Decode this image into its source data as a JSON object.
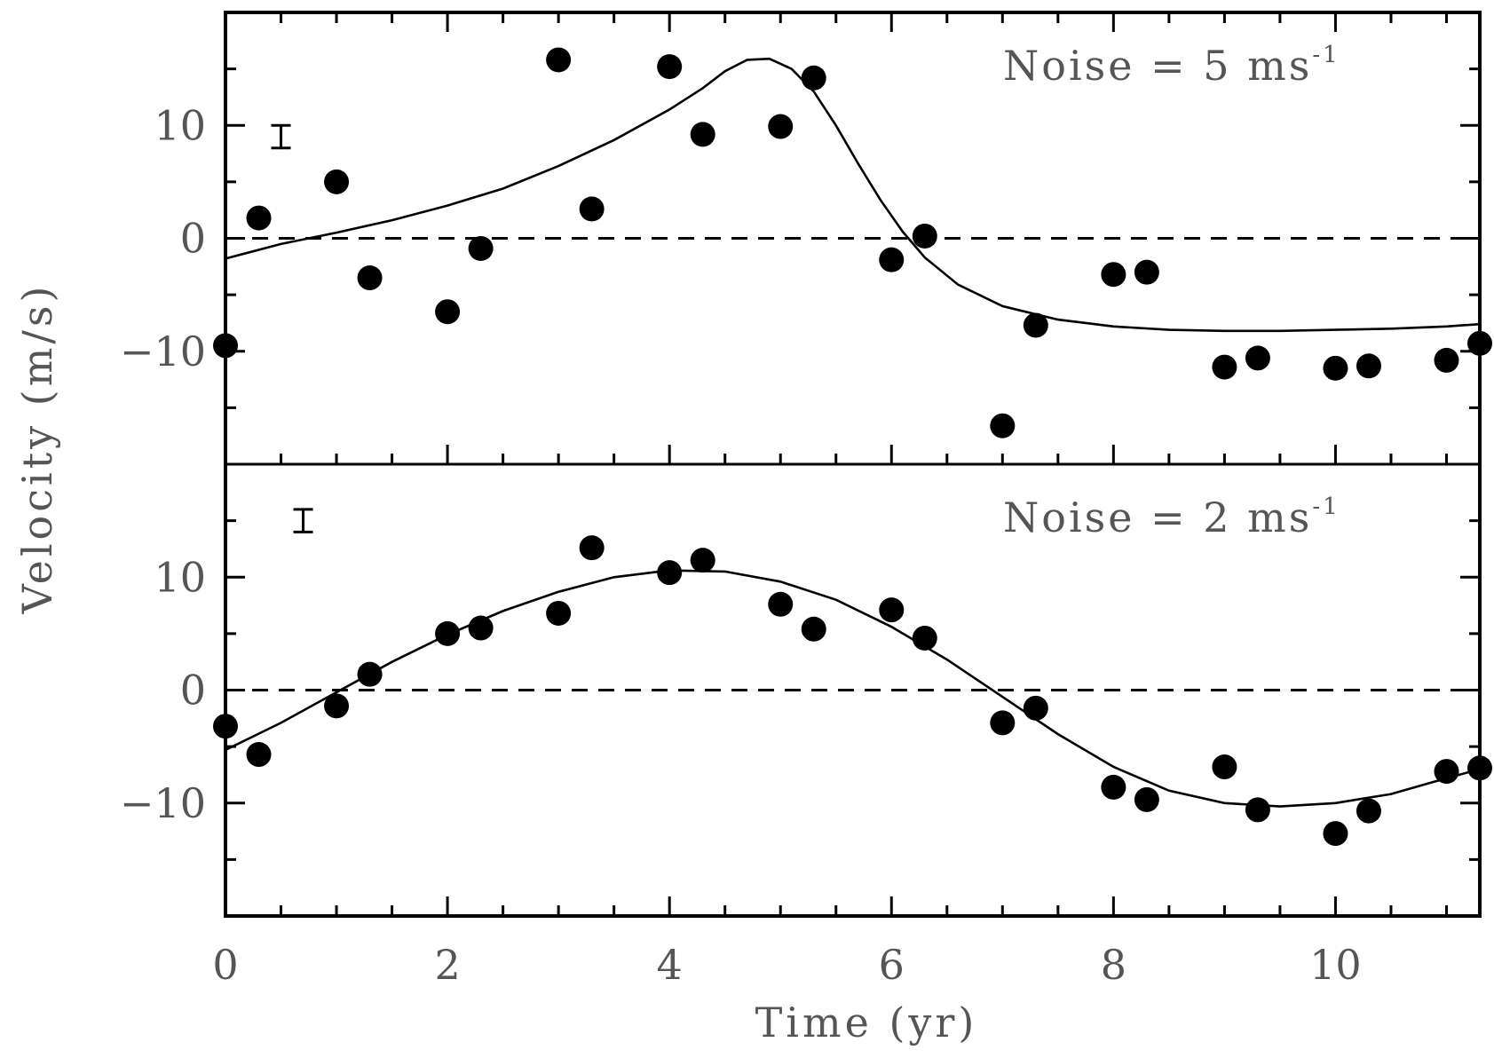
{
  "chart_data": {
    "type": "scatter",
    "xlabel": "Time (yr)",
    "ylabel": "Velocity (m/s)",
    "xlim": [
      0,
      11.3
    ],
    "x_ticks": [
      "0",
      "2",
      "4",
      "6",
      "8",
      "10"
    ],
    "x_tick_values": [
      0,
      2,
      4,
      6,
      8,
      10
    ],
    "grid": false,
    "legend": "none",
    "colors": {
      "axes": "#000000",
      "text": "#555555",
      "points": "#000000"
    },
    "panels": [
      {
        "label_text": "Noise = 5 ms",
        "label_exponent": "-1",
        "ylim": [
          -20,
          20
        ],
        "y_ticks": [
          "10",
          "0",
          "−10"
        ],
        "y_tick_values": [
          10,
          0,
          -10
        ],
        "zero_line": "dashed",
        "error_bar": {
          "x": 0.5,
          "y": 9,
          "half_height": 1
        },
        "points": [
          {
            "x": 0.0,
            "y": -9.5
          },
          {
            "x": 0.3,
            "y": 1.8
          },
          {
            "x": 1.0,
            "y": 5.0
          },
          {
            "x": 1.3,
            "y": -3.5
          },
          {
            "x": 2.0,
            "y": -6.5
          },
          {
            "x": 2.3,
            "y": -0.9
          },
          {
            "x": 3.0,
            "y": 15.8
          },
          {
            "x": 3.3,
            "y": 2.6
          },
          {
            "x": 4.0,
            "y": 15.2
          },
          {
            "x": 4.3,
            "y": 9.2
          },
          {
            "x": 5.0,
            "y": 9.9
          },
          {
            "x": 5.3,
            "y": 14.2
          },
          {
            "x": 6.0,
            "y": -1.9
          },
          {
            "x": 6.3,
            "y": 0.2
          },
          {
            "x": 7.0,
            "y": -16.6
          },
          {
            "x": 7.3,
            "y": -7.7
          },
          {
            "x": 8.0,
            "y": -3.2
          },
          {
            "x": 8.3,
            "y": -3.0
          },
          {
            "x": 9.0,
            "y": -11.4
          },
          {
            "x": 9.3,
            "y": -10.6
          },
          {
            "x": 10.0,
            "y": -11.5
          },
          {
            "x": 10.3,
            "y": -11.3
          },
          {
            "x": 11.0,
            "y": -10.8
          },
          {
            "x": 11.3,
            "y": -9.3
          }
        ],
        "fit_curve": [
          [
            0.0,
            -1.8
          ],
          [
            0.5,
            -0.5
          ],
          [
            1.0,
            0.5
          ],
          [
            1.5,
            1.6
          ],
          [
            2.0,
            2.9
          ],
          [
            2.5,
            4.4
          ],
          [
            3.0,
            6.4
          ],
          [
            3.5,
            8.7
          ],
          [
            4.0,
            11.4
          ],
          [
            4.3,
            13.3
          ],
          [
            4.5,
            14.8
          ],
          [
            4.7,
            15.8
          ],
          [
            4.9,
            15.9
          ],
          [
            5.1,
            15.0
          ],
          [
            5.3,
            13.0
          ],
          [
            5.5,
            10.0
          ],
          [
            5.7,
            6.6
          ],
          [
            5.9,
            3.4
          ],
          [
            6.1,
            0.6
          ],
          [
            6.3,
            -1.7
          ],
          [
            6.6,
            -4.1
          ],
          [
            7.0,
            -6.0
          ],
          [
            7.5,
            -7.2
          ],
          [
            8.0,
            -7.8
          ],
          [
            8.5,
            -8.1
          ],
          [
            9.0,
            -8.2
          ],
          [
            9.5,
            -8.2
          ],
          [
            10.0,
            -8.1
          ],
          [
            10.5,
            -8.0
          ],
          [
            11.0,
            -7.8
          ],
          [
            11.3,
            -7.6
          ]
        ]
      },
      {
        "label_text": "Noise = 2 ms",
        "label_exponent": "-1",
        "ylim": [
          -20,
          20
        ],
        "y_ticks": [
          "10",
          "0",
          "−10"
        ],
        "y_tick_values": [
          10,
          0,
          -10
        ],
        "zero_line": "dashed",
        "error_bar": {
          "x": 0.7,
          "y": 15,
          "half_height": 1
        },
        "points": [
          {
            "x": 0.0,
            "y": -3.2
          },
          {
            "x": 0.3,
            "y": -5.7
          },
          {
            "x": 1.0,
            "y": -1.4
          },
          {
            "x": 1.3,
            "y": 1.4
          },
          {
            "x": 2.0,
            "y": 5.0
          },
          {
            "x": 2.3,
            "y": 5.5
          },
          {
            "x": 3.0,
            "y": 6.8
          },
          {
            "x": 3.3,
            "y": 12.6
          },
          {
            "x": 4.0,
            "y": 10.4
          },
          {
            "x": 4.3,
            "y": 11.5
          },
          {
            "x": 5.0,
            "y": 7.6
          },
          {
            "x": 5.3,
            "y": 5.4
          },
          {
            "x": 6.0,
            "y": 7.1
          },
          {
            "x": 6.3,
            "y": 4.6
          },
          {
            "x": 7.0,
            "y": -2.9
          },
          {
            "x": 7.3,
            "y": -1.6
          },
          {
            "x": 8.0,
            "y": -8.6
          },
          {
            "x": 8.3,
            "y": -9.7
          },
          {
            "x": 9.0,
            "y": -6.8
          },
          {
            "x": 9.3,
            "y": -10.6
          },
          {
            "x": 10.0,
            "y": -12.7
          },
          {
            "x": 10.3,
            "y": -10.7
          },
          {
            "x": 11.0,
            "y": -7.2
          },
          {
            "x": 11.3,
            "y": -6.9
          }
        ],
        "fit_curve": [
          [
            0.0,
            -5.3
          ],
          [
            0.5,
            -2.9
          ],
          [
            1.0,
            -0.2
          ],
          [
            1.5,
            2.5
          ],
          [
            2.0,
            4.9
          ],
          [
            2.5,
            7.0
          ],
          [
            3.0,
            8.7
          ],
          [
            3.5,
            10.0
          ],
          [
            4.0,
            10.6
          ],
          [
            4.5,
            10.5
          ],
          [
            5.0,
            9.6
          ],
          [
            5.5,
            8.0
          ],
          [
            6.0,
            5.6
          ],
          [
            6.5,
            2.7
          ],
          [
            7.0,
            -0.6
          ],
          [
            7.5,
            -3.9
          ],
          [
            8.0,
            -6.8
          ],
          [
            8.5,
            -8.9
          ],
          [
            9.0,
            -10.0
          ],
          [
            9.5,
            -10.3
          ],
          [
            10.0,
            -10.0
          ],
          [
            10.5,
            -9.2
          ],
          [
            11.0,
            -7.8
          ],
          [
            11.3,
            -7.0
          ]
        ]
      }
    ]
  }
}
